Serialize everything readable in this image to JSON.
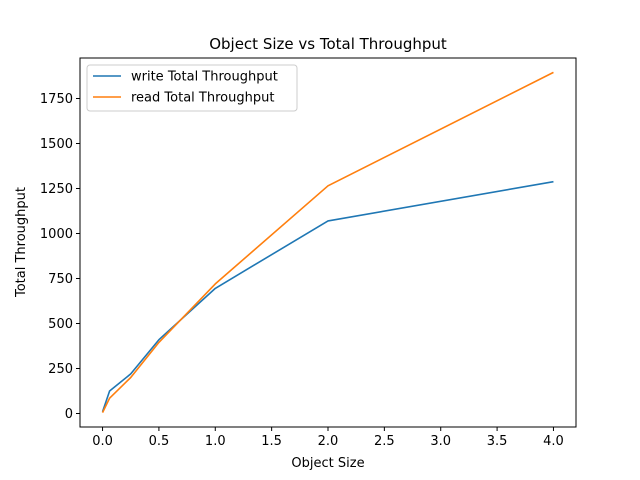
{
  "chart_data": {
    "type": "line",
    "title": "Object Size vs Total Throughput",
    "xlabel": "Object Size",
    "ylabel": "Total Throughput",
    "xlim": [
      -0.2,
      4.2
    ],
    "ylim": [
      -75,
      1975
    ],
    "xticks": [
      0.0,
      0.5,
      1.0,
      1.5,
      2.0,
      2.5,
      3.0,
      3.5,
      4.0
    ],
    "xtick_labels": [
      "0.0",
      "0.5",
      "1.0",
      "1.5",
      "2.0",
      "2.5",
      "3.0",
      "3.5",
      "4.0"
    ],
    "yticks": [
      0,
      250,
      500,
      750,
      1000,
      1250,
      1500,
      1750
    ],
    "ytick_labels": [
      "0",
      "250",
      "500",
      "750",
      "1000",
      "1250",
      "1500",
      "1750"
    ],
    "grid": false,
    "legend_position": "top-left",
    "x": [
      0.0,
      0.0625,
      0.25,
      0.5,
      1.0,
      2.0,
      4.0
    ],
    "series": [
      {
        "name": "write Total Throughput",
        "color": "#1f77b4",
        "values": [
          10,
          125,
          220,
          410,
          695,
          1070,
          1288
        ]
      },
      {
        "name": "read Total Throughput",
        "color": "#ff7f0e",
        "values": [
          5,
          85,
          200,
          395,
          720,
          1265,
          1895
        ]
      }
    ]
  }
}
